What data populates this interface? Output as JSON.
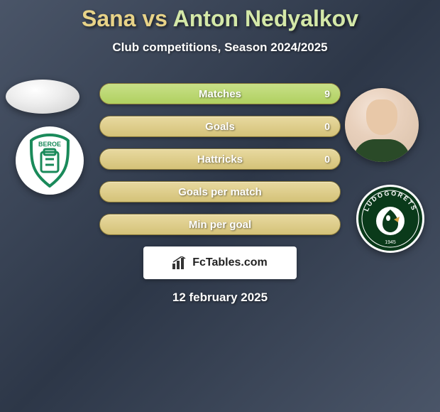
{
  "header": {
    "player1": "Sana",
    "vs": "vs",
    "player2": "Anton Nedyalkov",
    "subtitle": "Club competitions, Season 2024/2025"
  },
  "stats": {
    "rows": [
      {
        "label": "Matches",
        "left_val": "",
        "right_val": "9",
        "left_fill_pct": 0,
        "right_fill_pct": 100
      },
      {
        "label": "Goals",
        "left_val": "",
        "right_val": "0",
        "left_fill_pct": 0,
        "right_fill_pct": 0
      },
      {
        "label": "Hattricks",
        "left_val": "",
        "right_val": "0",
        "left_fill_pct": 0,
        "right_fill_pct": 0
      },
      {
        "label": "Goals per match",
        "left_val": "",
        "right_val": "",
        "left_fill_pct": 0,
        "right_fill_pct": 0
      },
      {
        "label": "Min per goal",
        "left_val": "",
        "right_val": "",
        "left_fill_pct": 0,
        "right_fill_pct": 0
      }
    ],
    "bar_base_color": "#e8d9a0",
    "bar_fill_color": "#c8e088"
  },
  "watermark": {
    "text": "FcTables.com"
  },
  "date": "12 february 2025",
  "clubs": {
    "left": {
      "name": "BEROE",
      "text_color": "#1a8a5a",
      "bg": "#ffffff"
    },
    "right": {
      "name": "LUDOGORETS",
      "text_color": "#ffffff",
      "bg": "#0a3a1a"
    }
  },
  "colors": {
    "background_gradient": [
      "#4a5568",
      "#2d3748"
    ],
    "title_p1": "#e8d388",
    "title_p2": "#d4e8a8"
  }
}
